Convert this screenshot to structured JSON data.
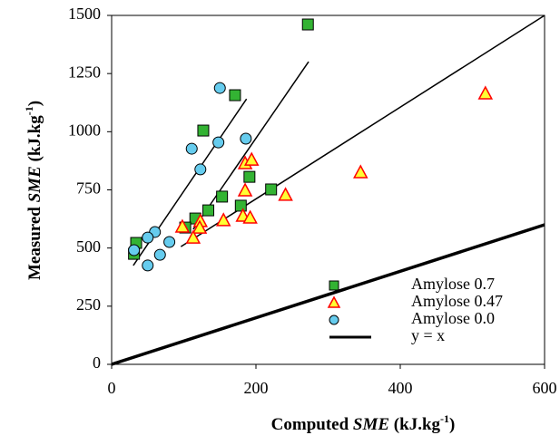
{
  "chart_data": {
    "type": "scatter",
    "xlabel": [
      "Computed ",
      "SME",
      " (kJ.kg",
      "-1",
      ")"
    ],
    "ylabel": [
      "Measured ",
      "SME",
      " (kJ.kg",
      "-1",
      ")"
    ],
    "xlim": [
      0,
      600
    ],
    "xticks": [
      0,
      200,
      400,
      600
    ],
    "ylim": [
      0,
      1500
    ],
    "yticks": [
      0,
      250,
      500,
      750,
      1000,
      1250,
      1500
    ],
    "series": [
      {
        "name": "Amylose 0.7",
        "marker": "square",
        "color": "#33b333",
        "x": [
          272,
          127,
          171,
          191,
          221,
          153,
          179,
          134,
          116,
          102,
          31,
          34
        ],
        "values": [
          1461,
          1005,
          1157,
          806,
          752,
          721,
          682,
          662,
          627,
          588,
          475,
          522
        ]
      },
      {
        "name": "Amylose 0.47",
        "marker": "triangle",
        "color": "#ffff33",
        "edge": "#ff0000",
        "x": [
          518,
          345,
          185,
          194,
          241,
          185,
          182,
          192,
          155,
          123,
          122,
          113,
          98
        ],
        "values": [
          1165,
          826,
          865,
          880,
          729,
          748,
          639,
          631,
          620,
          616,
          588,
          545,
          592
        ]
      },
      {
        "name": "Amylose 0.0",
        "marker": "circle",
        "color": "#66ccee",
        "x": [
          150,
          186,
          148,
          111,
          123,
          80,
          60,
          50,
          31,
          50,
          67
        ],
        "values": [
          1188,
          970,
          954,
          927,
          838,
          526,
          569,
          545,
          491,
          425,
          471
        ]
      },
      {
        "name": "y = x",
        "marker": "line",
        "color": "#000000",
        "x": [
          0,
          600
        ],
        "values": [
          0,
          600
        ]
      }
    ],
    "fit_lines": [
      {
        "x": [
          30,
          187
        ],
        "values": [
          425,
          1141
        ]
      },
      {
        "x": [
          113,
          273
        ],
        "values": [
          580,
          1301
        ]
      },
      {
        "x": [
          96,
          600
        ],
        "values": [
          506,
          1500
        ]
      }
    ]
  }
}
